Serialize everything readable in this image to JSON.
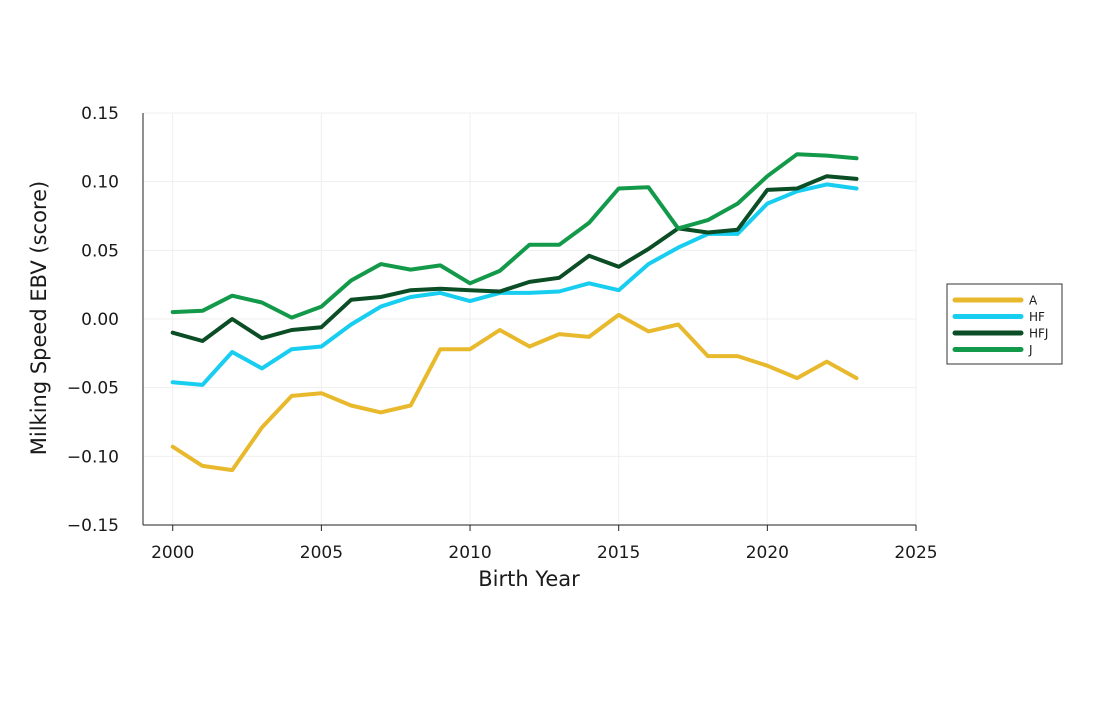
{
  "chart_data": {
    "type": "line",
    "title": "",
    "xlabel": "Birth Year",
    "ylabel": "Milking Speed EBV (score)",
    "xlim": [
      1999,
      2025
    ],
    "ylim": [
      -0.15,
      0.15
    ],
    "x_ticks": [
      2000,
      2005,
      2010,
      2015,
      2020,
      2025
    ],
    "x_tick_labels": [
      "2000",
      "2005",
      "2010",
      "2015",
      "2020",
      "2025"
    ],
    "y_ticks": [
      -0.15,
      -0.1,
      -0.05,
      0,
      0.05,
      0.1,
      0.15
    ],
    "y_tick_labels": [
      "−0.15",
      "−0.10",
      "−0.05",
      "0.00",
      "0.05",
      "0.10",
      "0.15"
    ],
    "grid": true,
    "legend_position": "right",
    "x": [
      2000,
      2001,
      2002,
      2003,
      2004,
      2005,
      2006,
      2007,
      2008,
      2009,
      2010,
      2011,
      2012,
      2013,
      2014,
      2015,
      2016,
      2017,
      2018,
      2019,
      2020,
      2021,
      2022,
      2023
    ],
    "series": [
      {
        "name": "A",
        "color": "#E8B92D",
        "values": [
          -0.093,
          -0.107,
          -0.11,
          -0.079,
          -0.056,
          -0.054,
          -0.063,
          -0.068,
          -0.063,
          -0.022,
          -0.022,
          -0.008,
          -0.02,
          -0.011,
          -0.013,
          0.003,
          -0.009,
          -0.004,
          -0.027,
          -0.027,
          -0.034,
          -0.043,
          -0.031,
          -0.043
        ]
      },
      {
        "name": "HF",
        "color": "#17CDF0",
        "values": [
          -0.046,
          -0.048,
          -0.024,
          -0.036,
          -0.022,
          -0.02,
          -0.004,
          0.009,
          0.016,
          0.019,
          0.013,
          0.019,
          0.019,
          0.02,
          0.026,
          0.021,
          0.04,
          0.052,
          0.062,
          0.062,
          0.084,
          0.093,
          0.098,
          0.095
        ]
      },
      {
        "name": "HFJ",
        "color": "#0B4D24",
        "values": [
          -0.01,
          -0.016,
          0.0,
          -0.014,
          -0.008,
          -0.006,
          0.014,
          0.016,
          0.021,
          0.022,
          0.021,
          0.02,
          0.027,
          0.03,
          0.046,
          0.038,
          0.051,
          0.066,
          0.063,
          0.065,
          0.094,
          0.095,
          0.104,
          0.102
        ]
      },
      {
        "name": "J",
        "color": "#13994A",
        "values": [
          0.005,
          0.006,
          0.017,
          0.012,
          0.001,
          0.009,
          0.028,
          0.04,
          0.036,
          0.039,
          0.026,
          0.035,
          0.054,
          0.054,
          0.07,
          0.095,
          0.096,
          0.066,
          0.072,
          0.084,
          0.104,
          0.12,
          0.119,
          0.117
        ]
      }
    ]
  }
}
